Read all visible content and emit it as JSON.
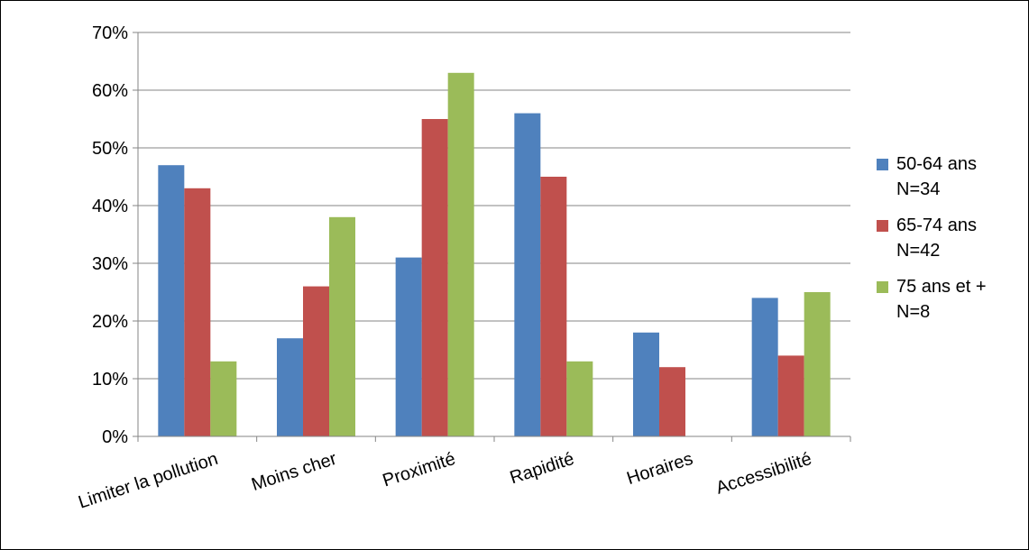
{
  "chart_data": {
    "type": "bar",
    "categories": [
      "Limiter la pollution",
      "Moins cher",
      "Proximité",
      "Rapidité",
      "Horaires",
      "Accessibilité"
    ],
    "series": [
      {
        "name": "50-64 ans N=34",
        "line1": "50-64 ans",
        "line2": "N=34",
        "color": "#4F81BD",
        "values": [
          47,
          17,
          31,
          56,
          18,
          24
        ]
      },
      {
        "name": "65-74 ans N=42",
        "line1": "65-74 ans",
        "line2": "N=42",
        "color": "#C0504D",
        "values": [
          43,
          26,
          55,
          45,
          12,
          14
        ]
      },
      {
        "name": "75 ans et + N=8",
        "line1": "75 ans et +",
        "line2": "N=8",
        "color": "#9BBB59",
        "values": [
          13,
          38,
          63,
          13,
          0,
          25
        ]
      }
    ],
    "yticks": [
      "0%",
      "10%",
      "20%",
      "30%",
      "40%",
      "50%",
      "60%",
      "70%"
    ],
    "ylim": [
      0,
      70
    ],
    "grid": true,
    "legend_position": "right",
    "title": "",
    "xlabel": "",
    "ylabel": ""
  }
}
